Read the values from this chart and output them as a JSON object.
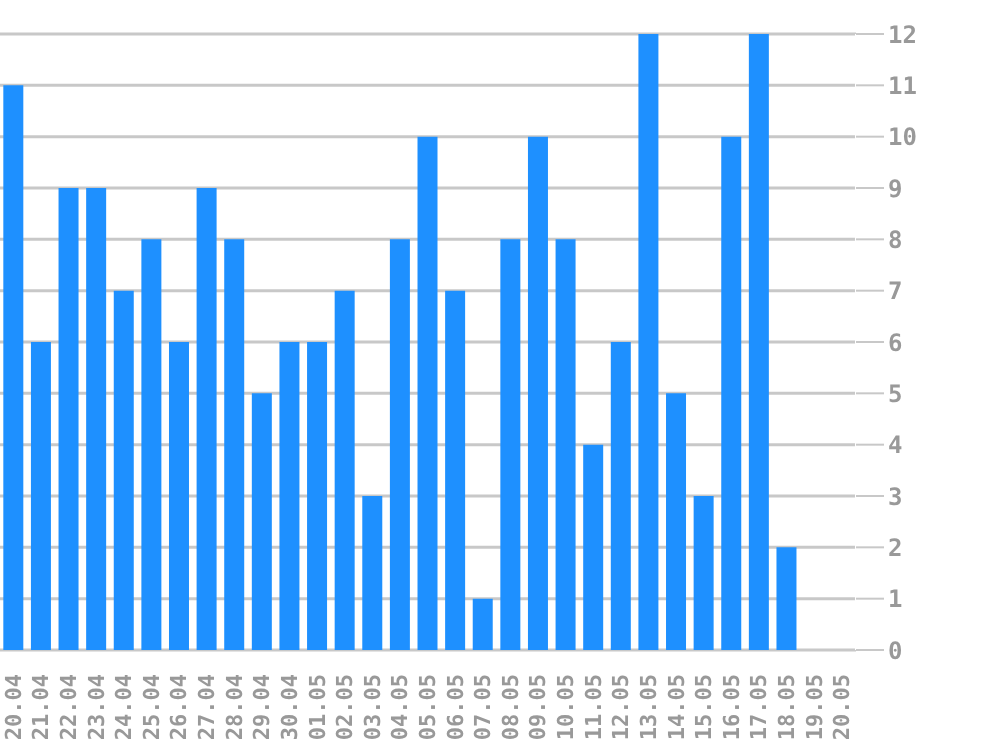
{
  "chart_data": {
    "type": "bar",
    "categories": [
      "20.04",
      "21.04",
      "22.04",
      "23.04",
      "24.04",
      "25.04",
      "26.04",
      "27.04",
      "28.04",
      "29.04",
      "30.04",
      "01.05",
      "02.05",
      "03.05",
      "04.05",
      "05.05",
      "06.05",
      "07.05",
      "08.05",
      "09.05",
      "10.05",
      "11.05",
      "12.05",
      "13.05",
      "14.05",
      "15.05",
      "16.05",
      "17.05",
      "18.05",
      "19.05",
      "20.05"
    ],
    "values": [
      11,
      6,
      9,
      9,
      7,
      8,
      6,
      9,
      8,
      5,
      6,
      6,
      7,
      3,
      8,
      10,
      7,
      1,
      8,
      10,
      8,
      4,
      6,
      12,
      5,
      3,
      10,
      12,
      2,
      0,
      0
    ],
    "color": "#1e90ff",
    "ylim": [
      0,
      12
    ],
    "yticks": [
      0,
      1,
      2,
      3,
      4,
      5,
      6,
      7,
      8,
      9,
      10,
      11,
      12
    ],
    "grid": "y"
  }
}
